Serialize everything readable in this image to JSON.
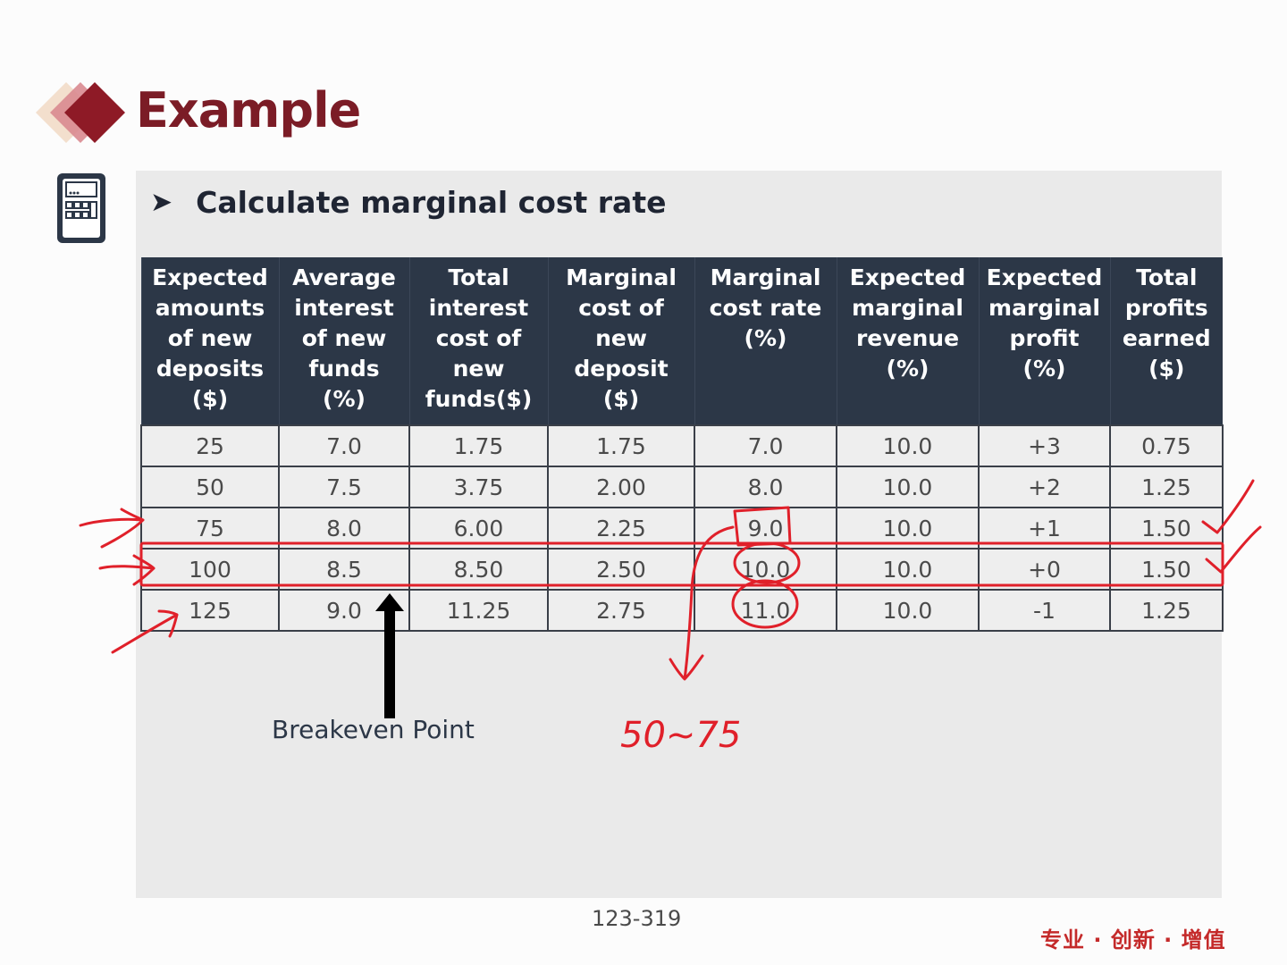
{
  "slide": {
    "title": "Example",
    "subtitle": "Calculate marginal cost rate",
    "bullet_icon": "arrowhead-bullet",
    "page_number": "123-319",
    "footer_tagline": "专业 · 创新 · 增值"
  },
  "table": {
    "headers": [
      [
        "Expected",
        "amounts",
        "of new",
        "deposits",
        "($)"
      ],
      [
        "Average",
        "interest",
        "of new",
        "funds",
        "(%)"
      ],
      [
        "Total",
        "interest",
        "cost of",
        "new",
        "funds($)"
      ],
      [
        "Marginal",
        "cost of",
        "new",
        "deposit",
        "($)"
      ],
      [
        "Marginal",
        "cost rate",
        "(%)"
      ],
      [
        "Expected",
        "marginal",
        "revenue",
        "(%)"
      ],
      [
        "Expected",
        "marginal",
        "profit",
        "(%)"
      ],
      [
        "Total",
        "profits",
        "earned",
        "($)"
      ]
    ],
    "rows": [
      [
        "25",
        "7.0",
        "1.75",
        "1.75",
        "7.0",
        "10.0",
        "+3",
        "0.75"
      ],
      [
        "50",
        "7.5",
        "3.75",
        "2.00",
        "8.0",
        "10.0",
        "+2",
        "1.25"
      ],
      [
        "75",
        "8.0",
        "6.00",
        "2.25",
        "9.0",
        "10.0",
        "+1",
        "1.50"
      ],
      [
        "100",
        "8.5",
        "8.50",
        "2.50",
        "10.0",
        "10.0",
        "+0",
        "1.50"
      ],
      [
        "125",
        "9.0",
        "11.25",
        "2.75",
        "11.0",
        "10.0",
        "-1",
        "1.25"
      ]
    ]
  },
  "breakeven": {
    "label": "Breakeven Point"
  },
  "handwriting": {
    "range_note": "50~75",
    "ink_color": "#e0202a"
  },
  "colors": {
    "title": "#7b1c26",
    "header_bg": "#2c3747",
    "panel_bg": "#eaeaea",
    "footer": "#c42a2a"
  },
  "icons": [
    "diamond-logo-icon",
    "calculator-icon",
    "arrowhead-bullet-icon",
    "up-arrow-icon"
  ]
}
